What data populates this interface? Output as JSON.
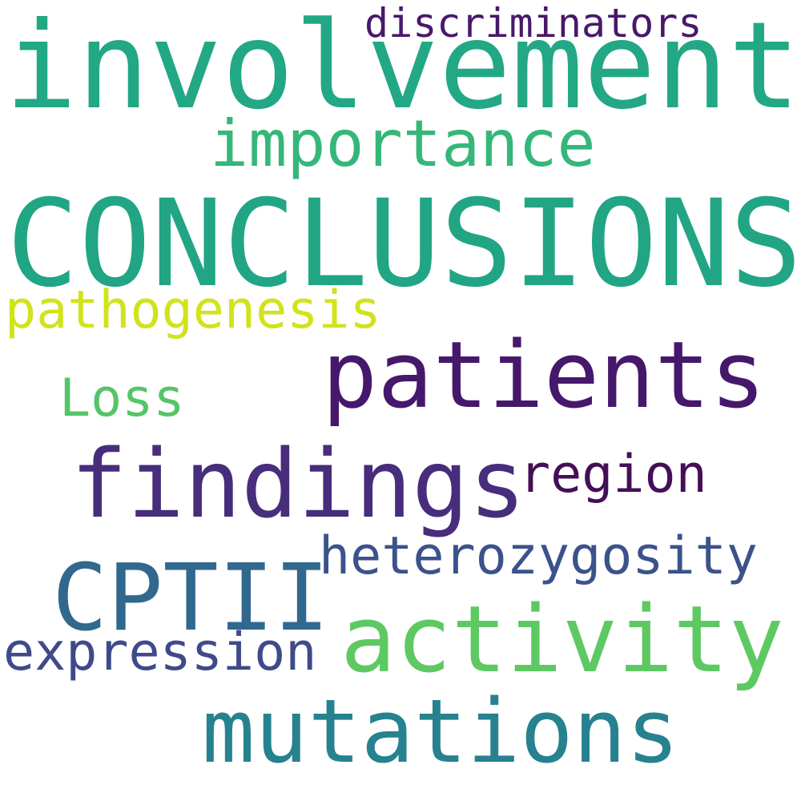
{
  "words": {
    "conclusions": {
      "text": "CONCLUSIONS",
      "color": "#21a585"
    },
    "involvement": {
      "text": "involvement",
      "color": "#22a884"
    },
    "discriminators": {
      "text": "discriminators",
      "color": "#48186a"
    },
    "importance": {
      "text": "importance",
      "color": "#35b779"
    },
    "pathogenesis": {
      "text": "pathogenesis",
      "color": "#d2e21b"
    },
    "patients": {
      "text": "patients",
      "color": "#46186b"
    },
    "loss": {
      "text": "Loss",
      "color": "#54c568"
    },
    "findings": {
      "text": "findings",
      "color": "#472d7b"
    },
    "region": {
      "text": "region",
      "color": "#440f57"
    },
    "heterozygosity": {
      "text": "heterozygosity",
      "color": "#3b528b"
    },
    "cptii": {
      "text": "CPTII",
      "color": "#31688e"
    },
    "activity": {
      "text": "activity",
      "color": "#5ec962"
    },
    "expression": {
      "text": "expression",
      "color": "#3e4a89"
    },
    "mutations": {
      "text": "mutations",
      "color": "#26828e"
    }
  }
}
